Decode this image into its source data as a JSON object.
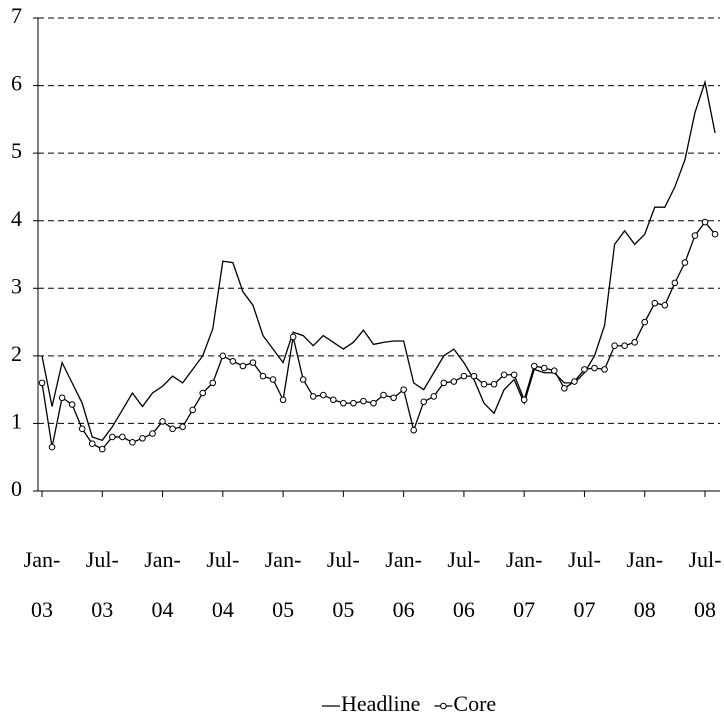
{
  "chart_data": {
    "type": "line",
    "categories": [
      "Jan-\n03",
      null,
      null,
      null,
      null,
      null,
      "Jul-\n03",
      null,
      null,
      null,
      null,
      null,
      "Jan-\n04",
      null,
      null,
      null,
      null,
      null,
      "Jul-\n04",
      null,
      null,
      null,
      null,
      null,
      "Jan-\n05",
      null,
      null,
      null,
      null,
      null,
      "Jul-\n05",
      null,
      null,
      null,
      null,
      null,
      "Jan-\n06",
      null,
      null,
      null,
      null,
      null,
      "Jul-\n06",
      null,
      null,
      null,
      null,
      null,
      "Jan-\n07",
      null,
      null,
      null,
      null,
      null,
      "Jul-\n07",
      null,
      null,
      null,
      null,
      null,
      "Jan-\n08",
      null,
      null,
      null,
      null,
      null,
      "Jul-\n08",
      null
    ],
    "series": [
      {
        "name": "Headline",
        "color": "#000000",
        "marker": false,
        "values": [
          2.0,
          1.25,
          1.9,
          1.6,
          1.3,
          0.8,
          0.75,
          0.95,
          1.2,
          1.45,
          1.25,
          1.45,
          1.55,
          1.7,
          1.6,
          1.8,
          2.0,
          2.4,
          3.4,
          3.38,
          2.95,
          2.75,
          2.3,
          2.1,
          1.9,
          2.35,
          2.3,
          2.15,
          2.3,
          2.2,
          2.1,
          2.2,
          2.38,
          2.17,
          2.2,
          2.22,
          2.22,
          1.6,
          1.5,
          1.75,
          2.0,
          2.1,
          1.9,
          1.65,
          1.3,
          1.15,
          1.5,
          1.65,
          1.3,
          1.8,
          1.75,
          1.75,
          1.6,
          1.6,
          1.75,
          2.0,
          2.45,
          3.65,
          3.85,
          3.65,
          3.8,
          4.2,
          4.2,
          4.5,
          4.9,
          5.6,
          6.05,
          5.3
        ]
      },
      {
        "name": "Core",
        "color": "#000000",
        "marker": true,
        "values": [
          1.6,
          0.65,
          1.38,
          1.28,
          0.92,
          0.7,
          0.62,
          0.8,
          0.8,
          0.72,
          0.78,
          0.85,
          1.03,
          0.92,
          0.95,
          1.2,
          1.45,
          1.6,
          2.0,
          1.92,
          1.85,
          1.9,
          1.7,
          1.65,
          1.35,
          2.28,
          1.65,
          1.4,
          1.42,
          1.35,
          1.3,
          1.3,
          1.33,
          1.3,
          1.42,
          1.38,
          1.5,
          0.9,
          1.32,
          1.4,
          1.6,
          1.62,
          1.7,
          1.7,
          1.58,
          1.58,
          1.72,
          1.72,
          1.35,
          1.85,
          1.82,
          1.78,
          1.52,
          1.62,
          1.8,
          1.82,
          1.8,
          2.15,
          2.15,
          2.2,
          2.5,
          2.78,
          2.75,
          3.08,
          3.38,
          3.78,
          3.98,
          3.8
        ]
      }
    ],
    "ylim": [
      0,
      7
    ],
    "yticks": [
      0,
      1,
      2,
      3,
      4,
      5,
      6,
      7
    ],
    "grid": true,
    "legend": "bottom"
  }
}
